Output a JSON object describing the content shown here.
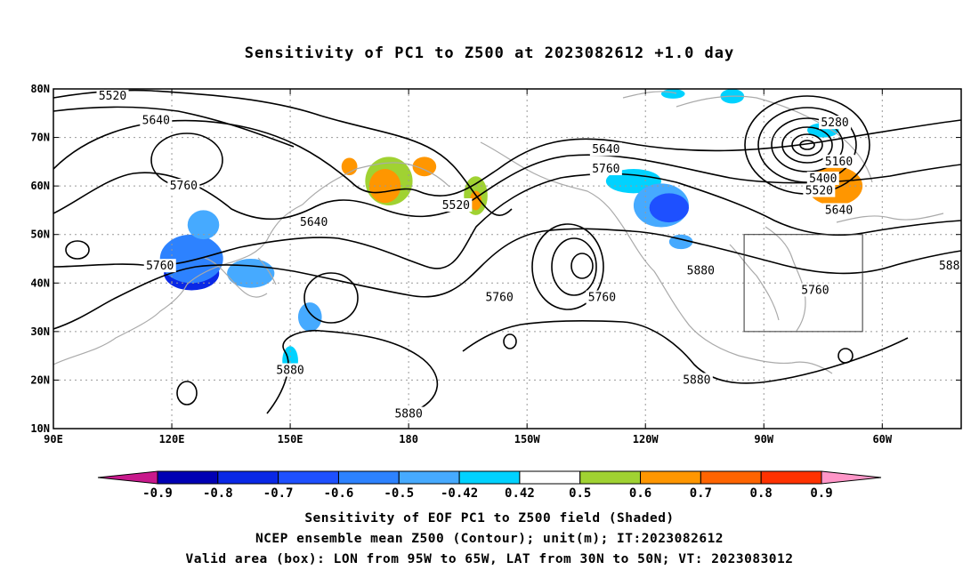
{
  "title": "Sensitivity of PC1 to Z500 at 2023082612 +1.0 day",
  "map": {
    "lon_labels": [
      "90E",
      "120E",
      "150E",
      "180",
      "150W",
      "120W",
      "90W",
      "60W"
    ],
    "lon_values": [
      90,
      120,
      150,
      180,
      210,
      240,
      270,
      300
    ],
    "lat_labels": [
      "10N",
      "20N",
      "30N",
      "40N",
      "50N",
      "60N",
      "70N",
      "80N"
    ],
    "lat_values": [
      10,
      20,
      30,
      40,
      50,
      60,
      70,
      80
    ],
    "extent": {
      "lon_min": 90,
      "lon_max": 320,
      "lat_min": 10,
      "lat_max": 80
    },
    "valid_box": {
      "lon_min": 265,
      "lon_max": 295,
      "lat_min": 30,
      "lat_max": 50
    },
    "contour_labels": [
      {
        "text": "5520",
        "lon": 105,
        "lat": 78.5
      },
      {
        "text": "5640",
        "lon": 116,
        "lat": 73.5
      },
      {
        "text": "5760",
        "lon": 123,
        "lat": 60
      },
      {
        "text": "5640",
        "lon": 156,
        "lat": 52.5
      },
      {
        "text": "5760",
        "lon": 117,
        "lat": 43.5
      },
      {
        "text": "5520",
        "lon": 192,
        "lat": 56
      },
      {
        "text": "5640",
        "lon": 230,
        "lat": 67.5
      },
      {
        "text": "5760",
        "lon": 230,
        "lat": 63.5
      },
      {
        "text": "5280",
        "lon": 288,
        "lat": 73
      },
      {
        "text": "5160",
        "lon": 289,
        "lat": 65
      },
      {
        "text": "5400",
        "lon": 285,
        "lat": 61.5
      },
      {
        "text": "5520",
        "lon": 284,
        "lat": 59
      },
      {
        "text": "5640",
        "lon": 289,
        "lat": 55
      },
      {
        "text": "5760",
        "lon": 203,
        "lat": 37
      },
      {
        "text": "5760",
        "lon": 229,
        "lat": 37
      },
      {
        "text": "5880",
        "lon": 254,
        "lat": 42.5
      },
      {
        "text": "5760",
        "lon": 283,
        "lat": 38.5
      },
      {
        "text": "588",
        "lon": 317,
        "lat": 43.5
      },
      {
        "text": "5880",
        "lon": 150,
        "lat": 22
      },
      {
        "text": "5880",
        "lon": 180,
        "lat": 13
      },
      {
        "text": "5880",
        "lon": 253,
        "lat": 20
      }
    ],
    "shading": [
      {
        "lon": 125,
        "lat": 42,
        "rx": 7,
        "ry": 3.5,
        "value": -0.8
      },
      {
        "lon": 125,
        "lat": 45,
        "rx": 8,
        "ry": 5,
        "value": -0.6
      },
      {
        "lon": 128,
        "lat": 52,
        "rx": 4,
        "ry": 3,
        "value": -0.5
      },
      {
        "lon": 140,
        "lat": 42,
        "rx": 6,
        "ry": 3,
        "value": -0.5
      },
      {
        "lon": 155,
        "lat": 33,
        "rx": 3,
        "ry": 3,
        "value": -0.5
      },
      {
        "lon": 150,
        "lat": 24,
        "rx": 2,
        "ry": 3,
        "value": -0.42
      },
      {
        "lon": 175,
        "lat": 61,
        "rx": 6,
        "ry": 5,
        "value": 0.5
      },
      {
        "lon": 174,
        "lat": 60,
        "rx": 4,
        "ry": 3.5,
        "value": 0.6
      },
      {
        "lon": 184,
        "lat": 64,
        "rx": 3,
        "ry": 2,
        "value": 0.6
      },
      {
        "lon": 165,
        "lat": 64,
        "rx": 2,
        "ry": 1.8,
        "value": 0.6
      },
      {
        "lon": 197,
        "lat": 58,
        "rx": 3,
        "ry": 4,
        "value": 0.5
      },
      {
        "lon": 197,
        "lat": 57,
        "rx": 1.5,
        "ry": 2,
        "value": 0.6
      },
      {
        "lon": 237,
        "lat": 61,
        "rx": 7,
        "ry": 2.5,
        "value": -0.42
      },
      {
        "lon": 244,
        "lat": 56,
        "rx": 7,
        "ry": 4.5,
        "value": -0.5
      },
      {
        "lon": 246,
        "lat": 55.5,
        "rx": 5,
        "ry": 3,
        "value": -0.7
      },
      {
        "lon": 249,
        "lat": 48.5,
        "rx": 3,
        "ry": 1.5,
        "value": -0.5
      },
      {
        "lon": 288,
        "lat": 60,
        "rx": 7,
        "ry": 4,
        "value": 0.6
      },
      {
        "lon": 285,
        "lat": 71.5,
        "rx": 4,
        "ry": 1.5,
        "value": -0.42
      },
      {
        "lon": 247,
        "lat": 79,
        "rx": 3,
        "ry": 1,
        "value": -0.42
      },
      {
        "lon": 262,
        "lat": 78.5,
        "rx": 3,
        "ry": 1.5,
        "value": -0.42
      }
    ]
  },
  "colorbar": {
    "labels": [
      "-0.9",
      "-0.8",
      "-0.7",
      "-0.6",
      "-0.5",
      "-0.42",
      "0.42",
      "0.5",
      "0.6",
      "0.7",
      "0.8",
      "0.9"
    ],
    "colors": [
      "#c8198c",
      "#0000b4",
      "#0a28e6",
      "#1e50ff",
      "#2d82ff",
      "#46aaff",
      "#00d2ff",
      "#ffffff",
      "#a0d232",
      "#ff9600",
      "#ff6400",
      "#ff3200",
      "#ff0000",
      "#ff96c8"
    ]
  },
  "captions": [
    "Sensitivity of EOF PC1 to Z500 field (Shaded)",
    "NCEP ensemble mean Z500 (Contour); unit(m); IT:2023082612",
    "Valid area (box): LON from 95W to 65W, LAT from 30N to 50N; VT: 2023083012"
  ]
}
